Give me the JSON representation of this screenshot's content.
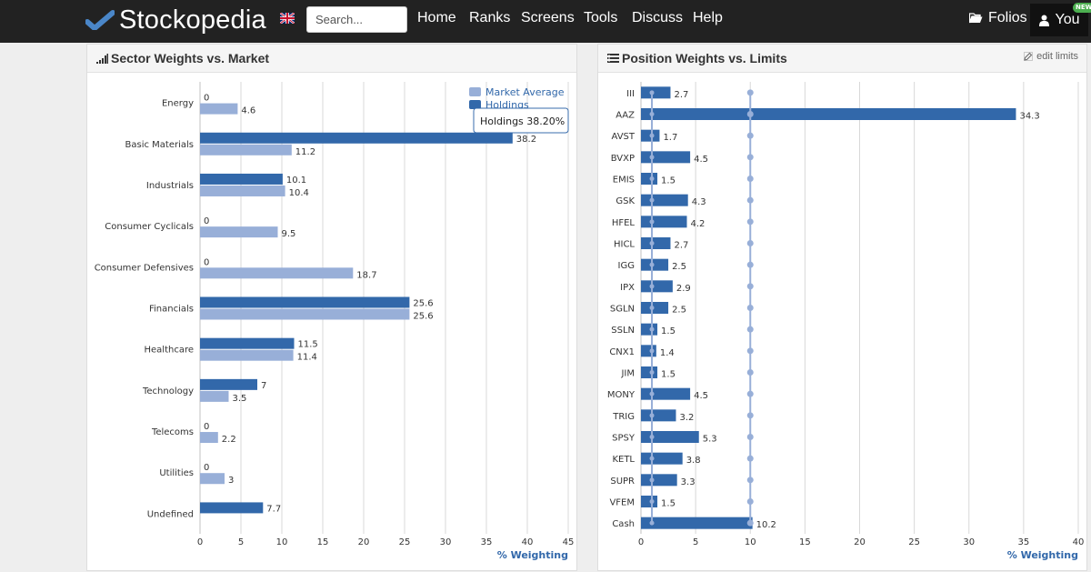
{
  "navbar": {
    "brand": "Stockopedia",
    "search_placeholder": "Search...",
    "links": [
      "Home",
      "Ranks",
      "Screens",
      "Tools",
      "Discuss",
      "Help"
    ],
    "folios_label": "Folios",
    "you_label": "You",
    "new_badge": "NEW",
    "colors": {
      "background": "#222222",
      "accent": "#4a86c8"
    }
  },
  "sector_panel": {
    "title": "Sector Weights vs. Market",
    "icon": "signal-bars-icon",
    "tooltip": "Holdings 38.20%",
    "chart_data": {
      "type": "bar",
      "orientation": "horizontal",
      "categories": [
        "Energy",
        "Basic Materials",
        "Industrials",
        "Consumer Cyclicals",
        "Consumer Defensives",
        "Financials",
        "Healthcare",
        "Technology",
        "Telecoms",
        "Utilities",
        "Undefined"
      ],
      "series": [
        {
          "name": "Holdings",
          "color": "#3268aa",
          "values": [
            0,
            38.2,
            10.1,
            0,
            0,
            25.6,
            11.5,
            7,
            0,
            0,
            7.7
          ],
          "labels": [
            "0",
            "38.2",
            "10.1",
            "0",
            "0",
            "25.6",
            "11.5",
            "7",
            "0",
            "0",
            "7.7"
          ]
        },
        {
          "name": "Market Average",
          "color": "#98afd8",
          "values": [
            4.6,
            11.2,
            10.4,
            9.5,
            18.7,
            25.6,
            11.4,
            3.5,
            2.2,
            3,
            null
          ],
          "labels": [
            "4.6",
            "11.2",
            "10.4",
            "9.5",
            "18.7",
            "25.6",
            "11.4",
            "3.5",
            "2.2",
            "3",
            ""
          ]
        }
      ],
      "xticks": [
        0,
        5,
        10,
        15,
        20,
        25,
        30,
        35,
        40,
        45
      ],
      "xlim": [
        0,
        45
      ],
      "xlabel": "% Weighting",
      "legend": "top-right",
      "grid": true
    }
  },
  "position_panel": {
    "title": "Position Weights vs. Limits",
    "icon": "list-icon",
    "edit_label": "edit limits",
    "chart_data": {
      "type": "bar",
      "orientation": "horizontal",
      "categories": [
        "III",
        "AAZ",
        "AVST",
        "BVXP",
        "EMIS",
        "GSK",
        "HFEL",
        "HICL",
        "IGG",
        "IPX",
        "SGLN",
        "SSLN",
        "CNX1",
        "JIM",
        "MONY",
        "TRIG",
        "SPSY",
        "KETL",
        "SUPR",
        "VFEM",
        "Cash"
      ],
      "values": [
        2.7,
        34.3,
        1.7,
        4.5,
        1.5,
        4.3,
        4.2,
        2.7,
        2.5,
        2.9,
        2.5,
        1.5,
        1.4,
        1.5,
        4.5,
        3.2,
        5.3,
        3.8,
        3.3,
        1.5,
        10.2
      ],
      "labels": [
        "2.7",
        "34.3",
        "1.7",
        "4.5",
        "1.5",
        "4.3",
        "4.2",
        "2.7",
        "2.5",
        "2.9",
        "2.5",
        "1.5",
        "1.4",
        "1.5",
        "4.5",
        "3.2",
        "5.3",
        "3.8",
        "3.3",
        "1.5",
        "10.2"
      ],
      "limit_lines": [
        1,
        10
      ],
      "color": "#3268aa",
      "limit_color": "#98afd8",
      "xticks": [
        0,
        5,
        10,
        15,
        20,
        25,
        30,
        35,
        40
      ],
      "xlim": [
        0,
        40
      ],
      "xlabel": "% Weighting",
      "grid": true
    }
  }
}
